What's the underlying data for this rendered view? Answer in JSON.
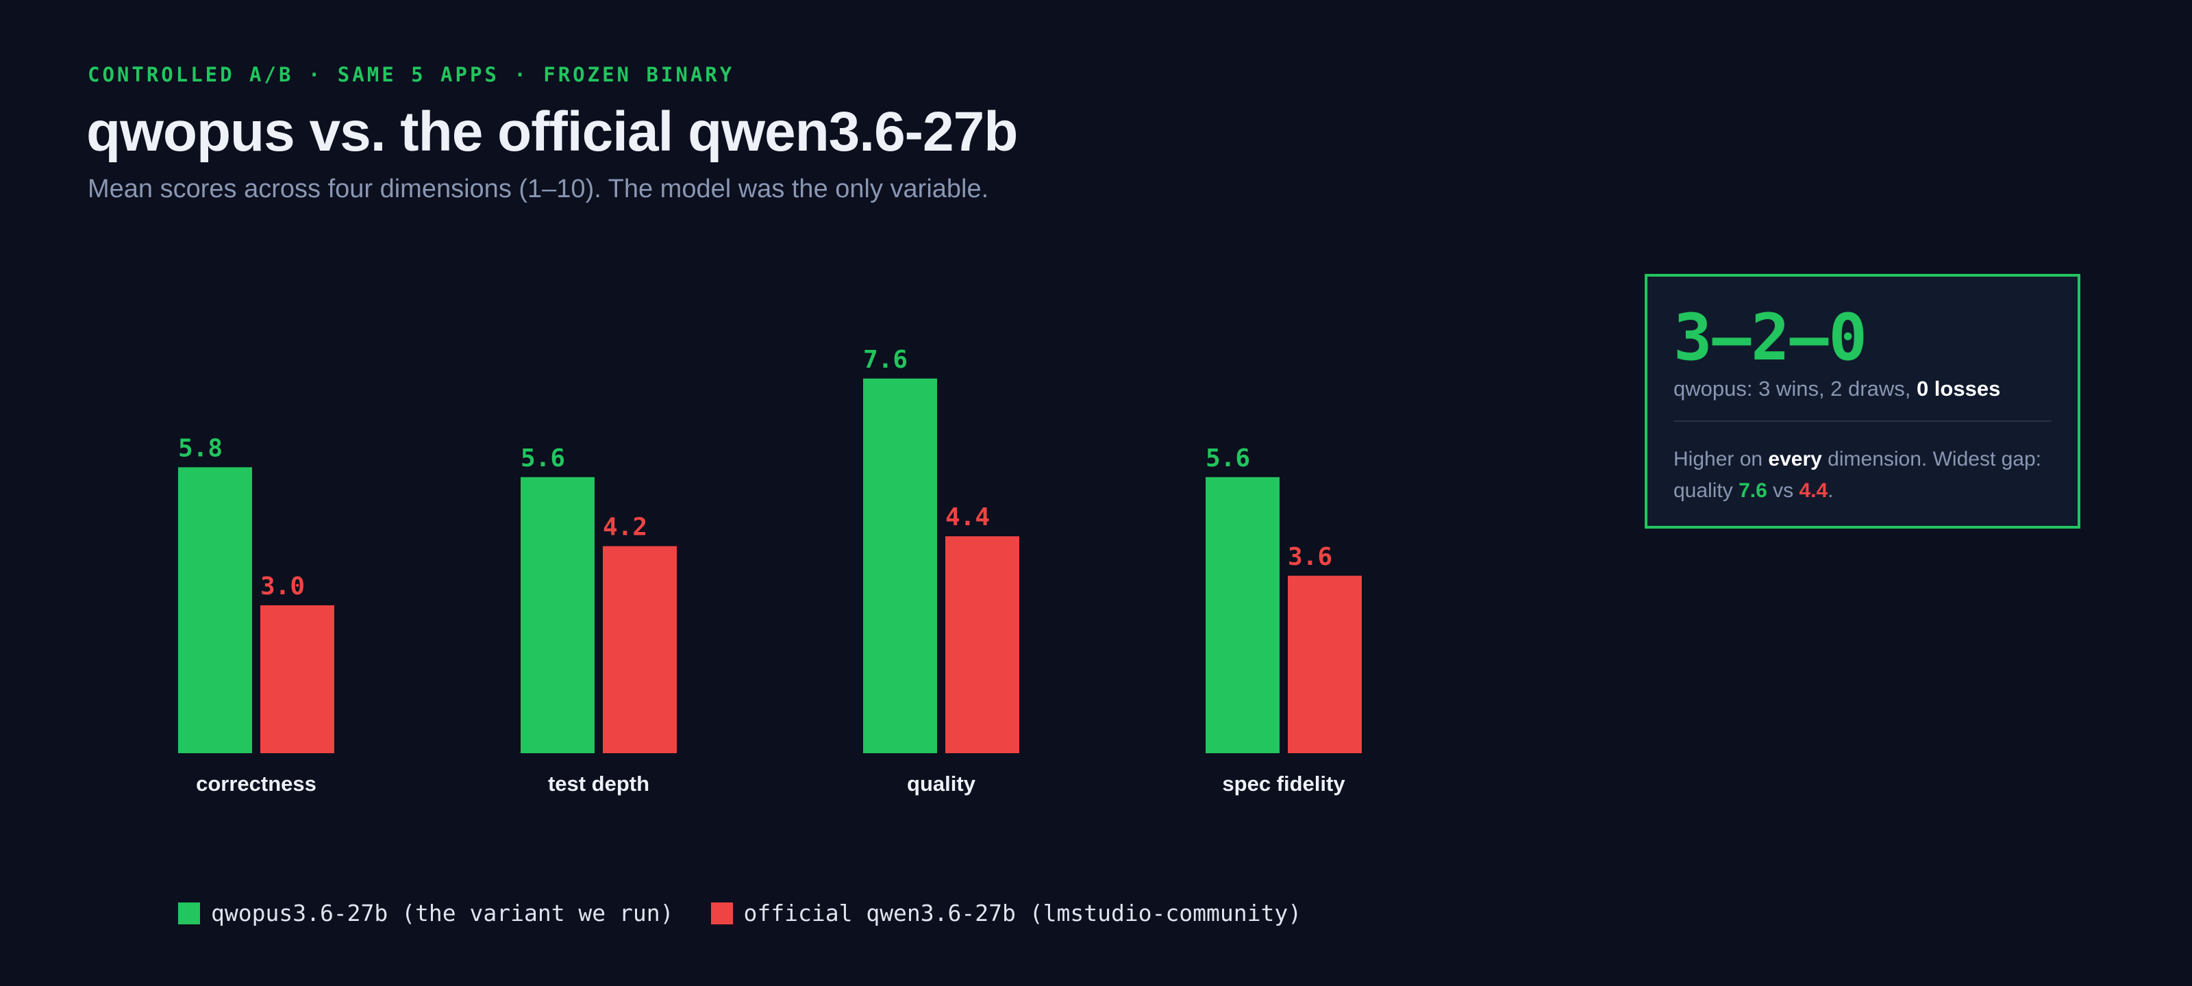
{
  "header": {
    "kicker": "CONTROLLED A/B · SAME 5 APPS · FROZEN BINARY",
    "title": "qwopus vs. the official qwen3.6-27b",
    "subtitle": "Mean scores across four dimensions (1–10). The model was the only variable."
  },
  "chart_data": {
    "type": "bar",
    "categories": [
      "correctness",
      "test depth",
      "quality",
      "spec fidelity"
    ],
    "series": [
      {
        "name": "qwopus3.6-27b (the variant we run)",
        "values": [
          5.8,
          5.6,
          7.6,
          5.6
        ],
        "color": "#22c55e"
      },
      {
        "name": "official qwen3.6-27b (lmstudio-community)",
        "values": [
          3.0,
          4.2,
          4.4,
          3.6
        ],
        "color": "#ef4444"
      }
    ],
    "title": "qwopus vs. the official qwen3.6-27b",
    "xlabel": "",
    "ylabel": "",
    "ylim": [
      0,
      10
    ],
    "grid": false,
    "legend": "bottom-left"
  },
  "summary": {
    "score": "3–2–0",
    "record_prefix": "qwopus: 3 wins, 2 draws, ",
    "record_bold": "0 losses",
    "note_1": "Higher on ",
    "note_bold": "every",
    "note_2": " dimension. Widest gap: quality ",
    "note_val_a": "7.6",
    "note_vs": " vs ",
    "note_val_b": "4.4",
    "note_end": "."
  },
  "colors": {
    "background": "#0b0f1e",
    "accent": "#22c55e",
    "rival": "#ef4444",
    "card": "#111a2c"
  }
}
